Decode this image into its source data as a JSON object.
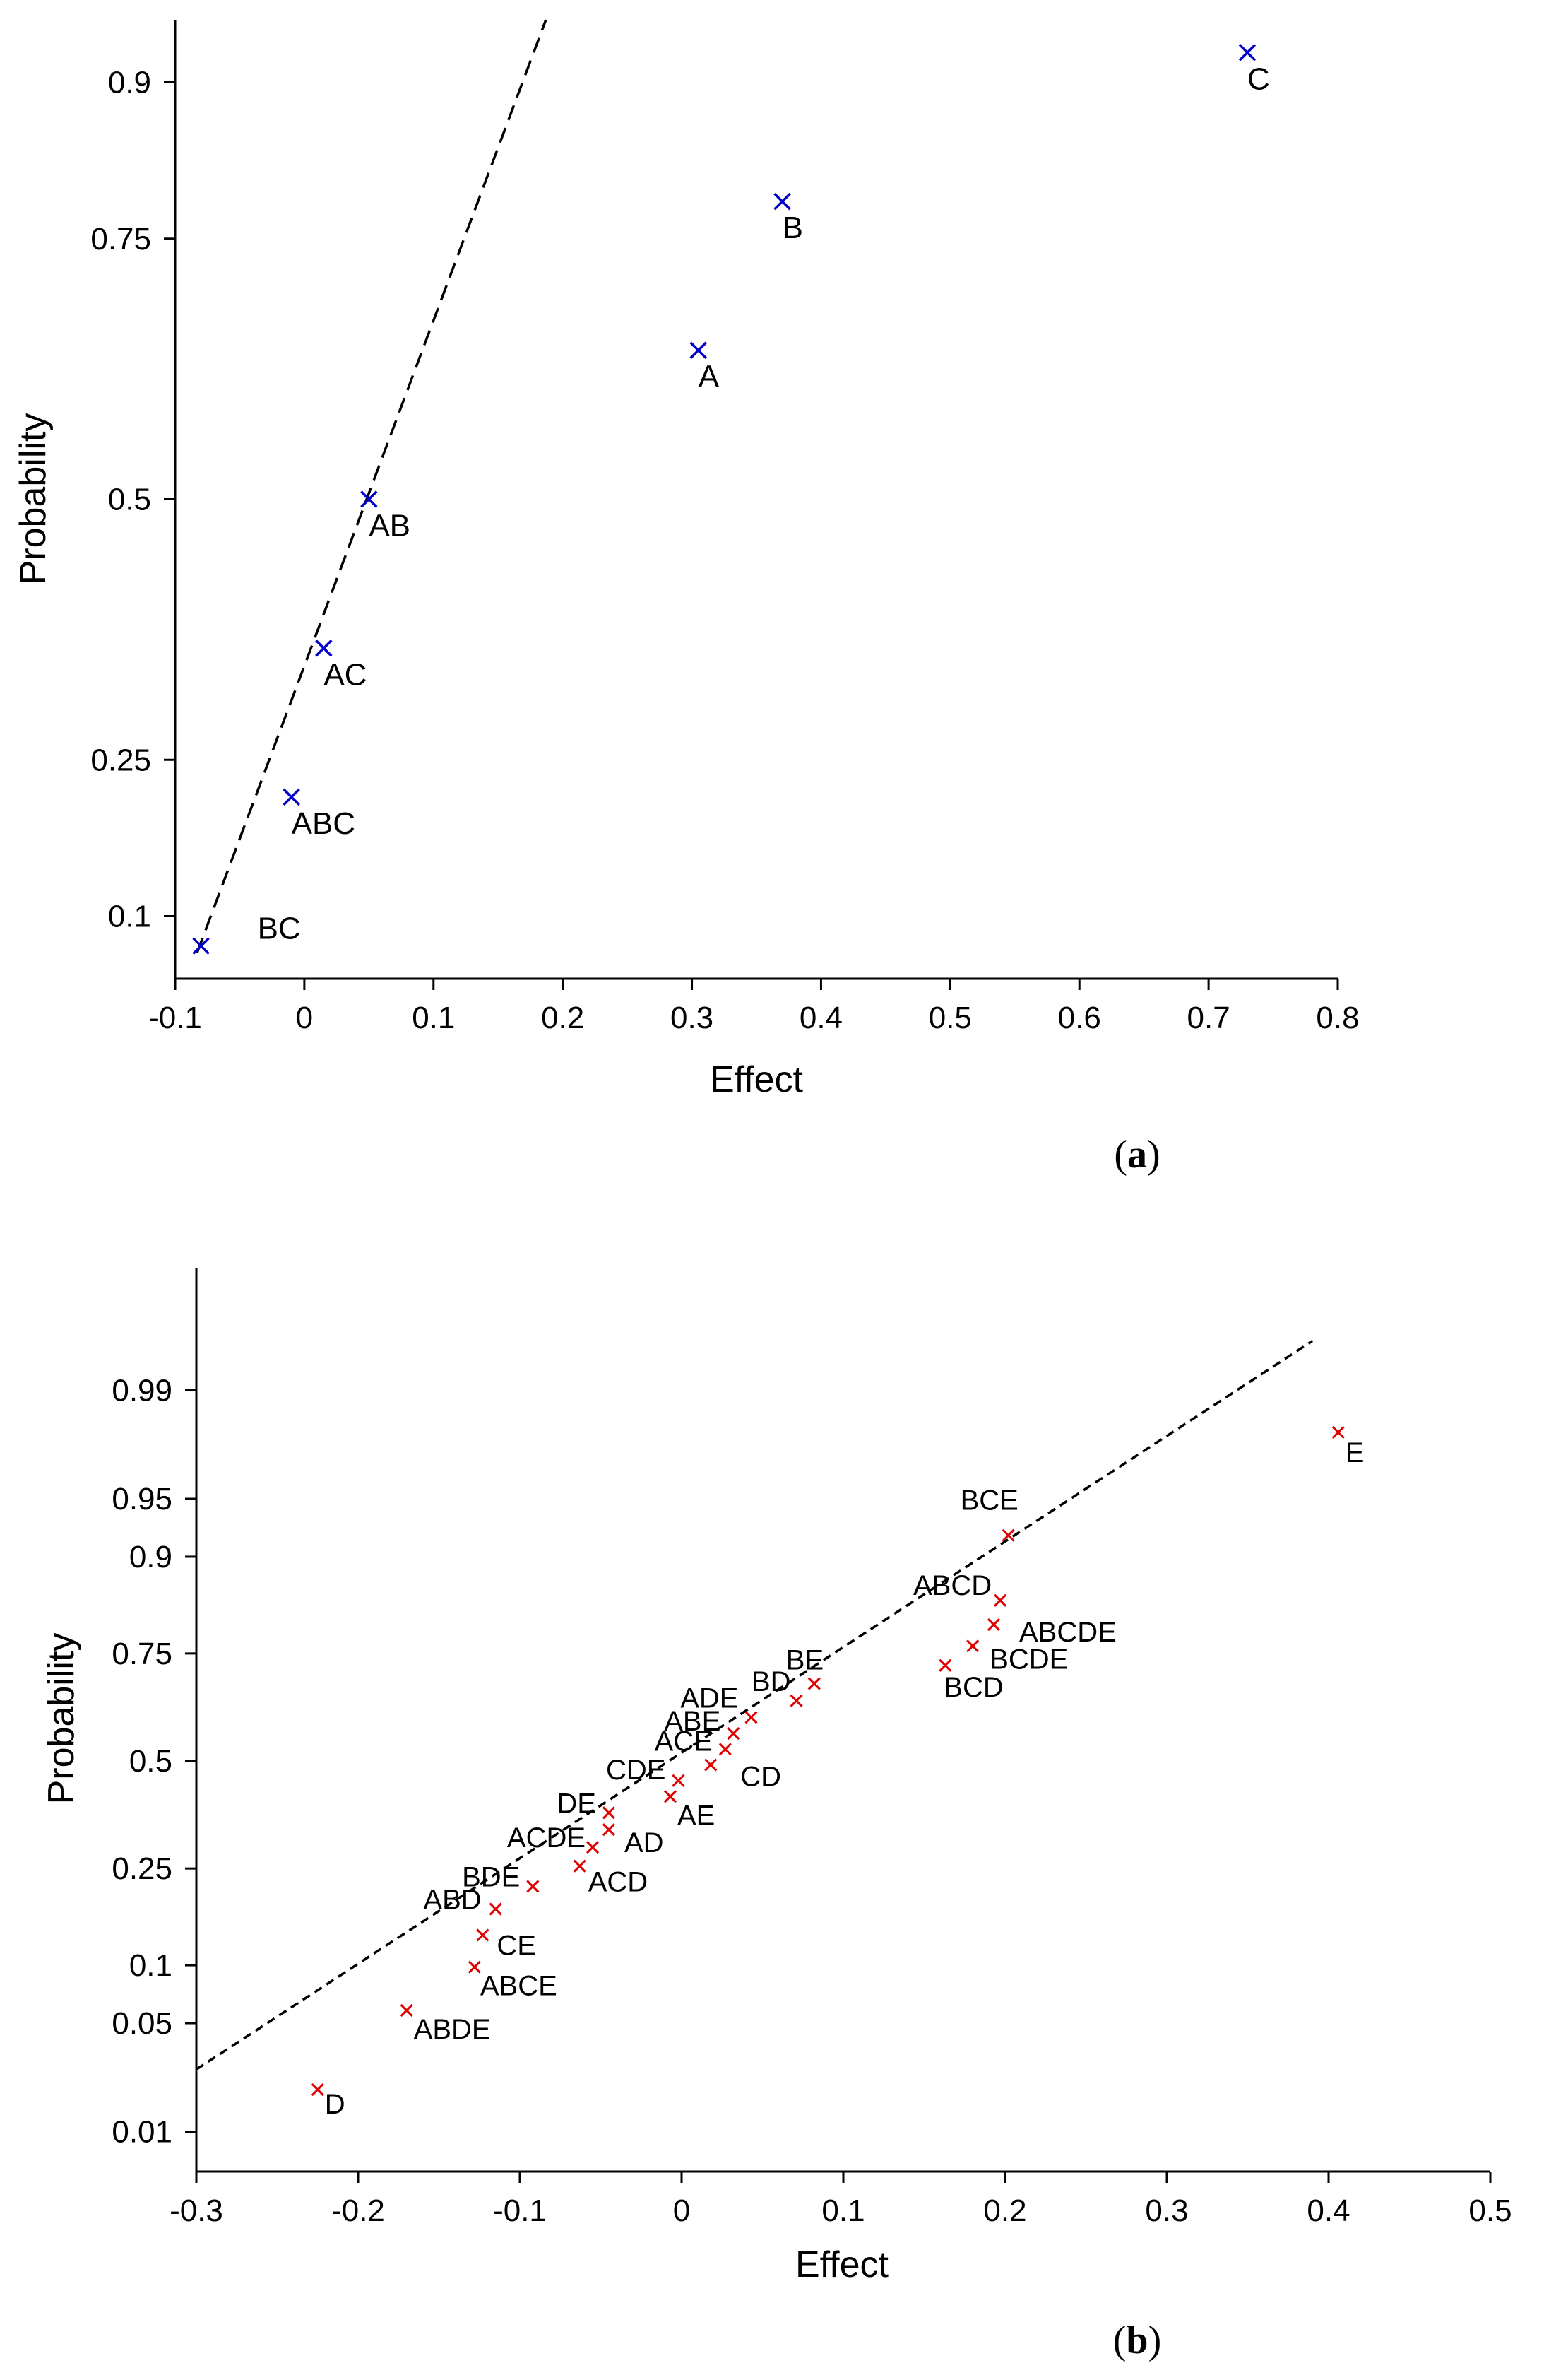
{
  "chart_data": [
    {
      "type": "scatter",
      "panel": "a",
      "caption_letter": "a",
      "xlabel": "Effect",
      "ylabel": "Probability",
      "xlim": [
        -0.1,
        0.8
      ],
      "ylim": [
        0.04,
        0.96
      ],
      "x_ticks": [
        -0.1,
        0,
        0.1,
        0.2,
        0.3,
        0.4,
        0.5,
        0.6,
        0.7,
        0.8
      ],
      "x_tick_labels": [
        "-0.1",
        "0",
        "0.1",
        "0.2",
        "0.3",
        "0.4",
        "0.5",
        "0.6",
        "0.7",
        "0.8"
      ],
      "y_ticks": [
        0.1,
        0.25,
        0.5,
        0.75,
        0.9
      ],
      "y_tick_labels": [
        "0.1",
        "0.25",
        "0.5",
        "0.75",
        "0.9"
      ],
      "marker_color": "#0000cc",
      "points": [
        {
          "label": "BC",
          "x": -0.08,
          "y": 0.0714
        },
        {
          "label": "ABC",
          "x": -0.01,
          "y": 0.2143
        },
        {
          "label": "AC",
          "x": 0.015,
          "y": 0.3571
        },
        {
          "label": "AB",
          "x": 0.05,
          "y": 0.5
        },
        {
          "label": "A",
          "x": 0.305,
          "y": 0.6429
        },
        {
          "label": "B",
          "x": 0.37,
          "y": 0.7857
        },
        {
          "label": "C",
          "x": 0.73,
          "y": 0.9286
        }
      ],
      "fit_line": {
        "style": "dashed",
        "x": [
          -0.083,
          0.187
        ],
        "y": [
          0.065,
          0.96
        ]
      }
    },
    {
      "type": "scatter",
      "panel": "b",
      "caption_letter": "b",
      "xlabel": "Effect",
      "ylabel": "Probability",
      "xlim": [
        -0.3,
        0.5
      ],
      "ylim": [
        0.005,
        0.999
      ],
      "x_ticks": [
        -0.3,
        -0.2,
        -0.1,
        0,
        0.1,
        0.2,
        0.3,
        0.4,
        0.5
      ],
      "x_tick_labels": [
        "-0.3",
        "-0.2",
        "-0.1",
        "0",
        "0.1",
        "0.2",
        "0.3",
        "0.4",
        "0.5"
      ],
      "y_ticks": [
        0.01,
        0.05,
        0.1,
        0.25,
        0.5,
        0.75,
        0.9,
        0.95,
        0.99
      ],
      "y_tick_labels": [
        "0.01",
        "0.05",
        "0.1",
        "0.25",
        "0.5",
        "0.75",
        "0.9",
        "0.95",
        "0.99"
      ],
      "marker_color": "#e00000",
      "points": [
        {
          "label": "D",
          "x": -0.225,
          "y": 0.0196
        },
        {
          "label": "ABDE",
          "x": -0.17,
          "y": 0.0588
        },
        {
          "label": "ABCE",
          "x": -0.128,
          "y": 0.098
        },
        {
          "label": "CE",
          "x": -0.123,
          "y": 0.1373
        },
        {
          "label": "ABD",
          "x": -0.115,
          "y": 0.1765
        },
        {
          "label": "BDE",
          "x": -0.092,
          "y": 0.2157
        },
        {
          "label": "ACD",
          "x": -0.063,
          "y": 0.2549
        },
        {
          "label": "ACDE",
          "x": -0.055,
          "y": 0.2941
        },
        {
          "label": "AD",
          "x": -0.045,
          "y": 0.3333
        },
        {
          "label": "DE",
          "x": -0.045,
          "y": 0.3725
        },
        {
          "label": "AE",
          "x": -0.007,
          "y": 0.4118
        },
        {
          "label": "CDE",
          "x": -0.002,
          "y": 0.451
        },
        {
          "label": "CD",
          "x": 0.018,
          "y": 0.4902
        },
        {
          "label": "ACE",
          "x": 0.027,
          "y": 0.5294
        },
        {
          "label": "ABE",
          "x": 0.032,
          "y": 0.5686
        },
        {
          "label": "ADE",
          "x": 0.043,
          "y": 0.6078
        },
        {
          "label": "BD",
          "x": 0.071,
          "y": 0.6471
        },
        {
          "label": "BE",
          "x": 0.082,
          "y": 0.6863
        },
        {
          "label": "BCD",
          "x": 0.163,
          "y": 0.7255
        },
        {
          "label": "BCDE",
          "x": 0.18,
          "y": 0.7647
        },
        {
          "label": "ABCDE",
          "x": 0.193,
          "y": 0.8039
        },
        {
          "label": "ABCD",
          "x": 0.197,
          "y": 0.8431
        },
        {
          "label": "BCE",
          "x": 0.202,
          "y": 0.9216
        },
        {
          "label": "E",
          "x": 0.406,
          "y": 0.9804
        }
      ],
      "fit_line": {
        "style": "dashed",
        "x": [
          -0.3,
          0.39
        ],
        "y": [
          0.0265,
          0.9958
        ]
      }
    }
  ]
}
